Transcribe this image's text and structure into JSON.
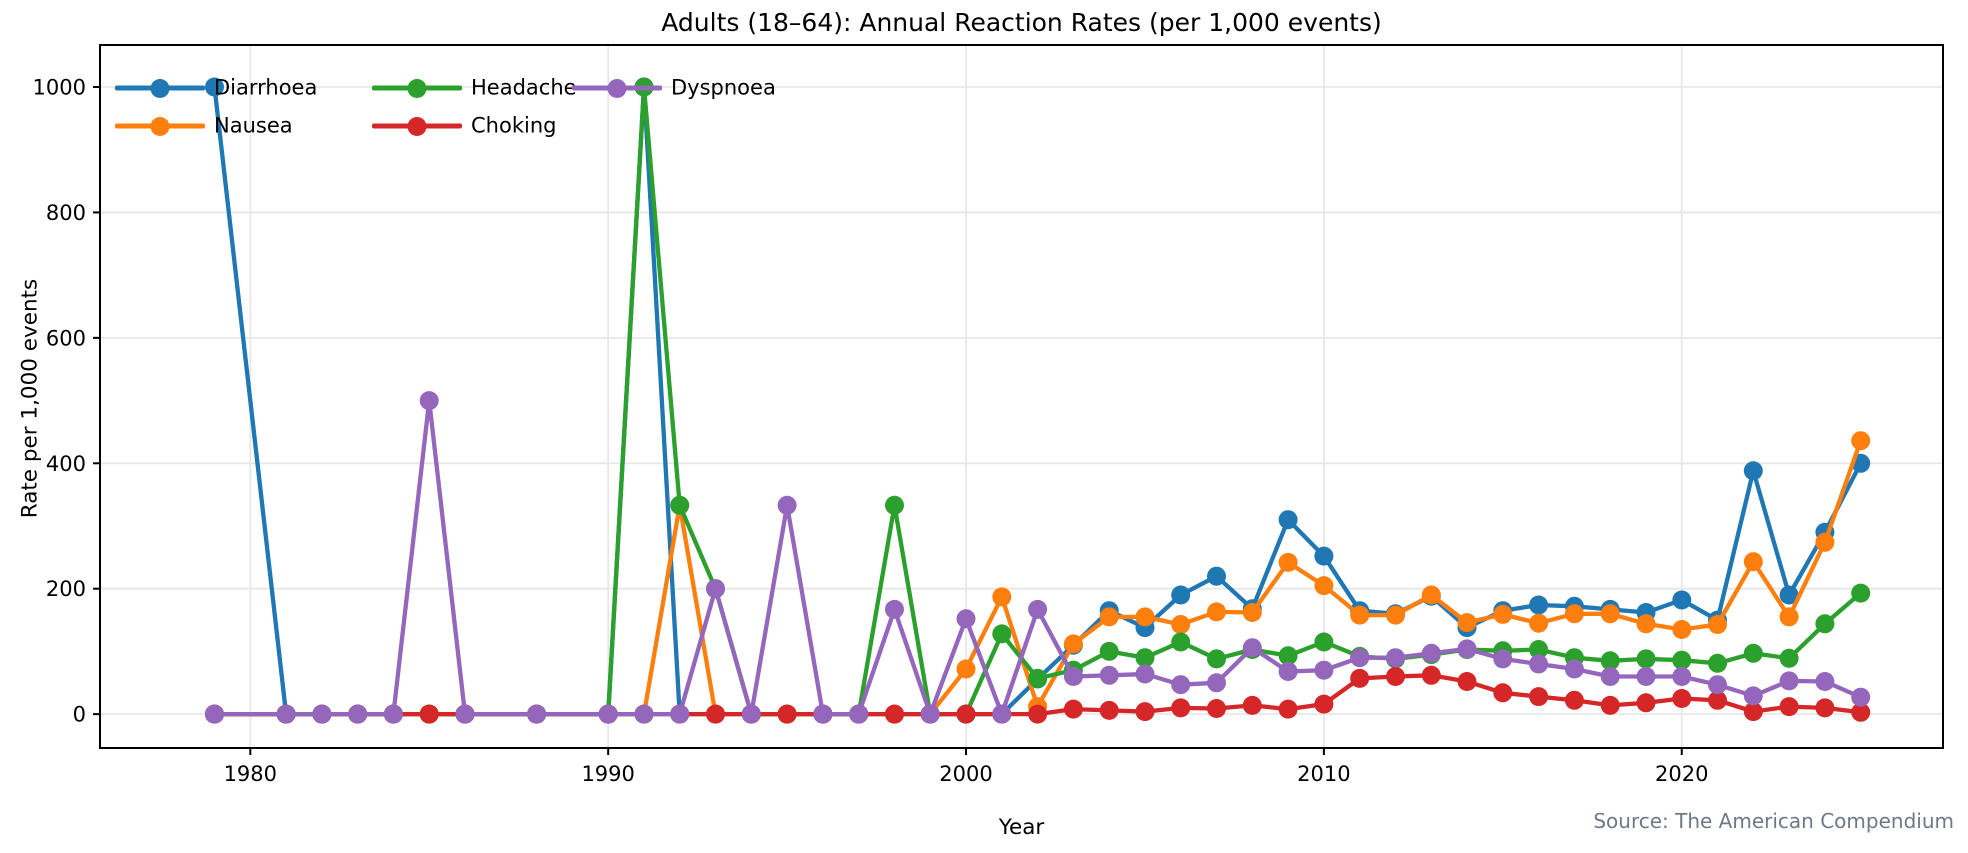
{
  "chart_data": {
    "type": "line",
    "title": "Adults (18–64): Annual Reaction Rates (per 1,000 events)",
    "xlabel": "Year",
    "ylabel": "Rate per 1,000 events",
    "source": "Source: The American Compendium",
    "xlim": [
      1975.8,
      2027.3
    ],
    "ylim": [
      -54,
      1067
    ],
    "x_ticks": [
      1980,
      1990,
      2000,
      2010,
      2020
    ],
    "y_ticks": [
      0,
      200,
      400,
      600,
      800,
      1000
    ],
    "grid": true,
    "legend_position": "upper-left",
    "x": [
      1979,
      1981,
      1982,
      1983,
      1984,
      1985,
      1986,
      1988,
      1990,
      1991,
      1992,
      1993,
      1994,
      1995,
      1996,
      1997,
      1998,
      1999,
      2000,
      2001,
      2002,
      2003,
      2004,
      2005,
      2006,
      2007,
      2008,
      2009,
      2010,
      2011,
      2012,
      2013,
      2014,
      2015,
      2016,
      2017,
      2018,
      2019,
      2020,
      2021,
      2022,
      2023,
      2024,
      2025
    ],
    "series": [
      {
        "name": "Diarrhoea",
        "color": "#1f77b4",
        "values": [
          1000,
          0,
          0,
          0,
          0,
          0,
          0,
          0,
          0,
          1000,
          0,
          0,
          0,
          0,
          0,
          0,
          0,
          0,
          0,
          0,
          56,
          110,
          165,
          138,
          190,
          220,
          168,
          310,
          252,
          165,
          160,
          188,
          138,
          165,
          174,
          172,
          167,
          162,
          182,
          150,
          388,
          190,
          290,
          400
        ]
      },
      {
        "name": "Nausea",
        "color": "#ff7f0e",
        "values": [
          0,
          0,
          0,
          0,
          0,
          0,
          0,
          0,
          0,
          0,
          333,
          0,
          0,
          0,
          0,
          0,
          0,
          0,
          72,
          187,
          12,
          112,
          155,
          155,
          143,
          163,
          162,
          242,
          205,
          158,
          158,
          190,
          146,
          159,
          145,
          160,
          160,
          144,
          135,
          143,
          243,
          155,
          274,
          436
        ]
      },
      {
        "name": "Headache",
        "color": "#2ca02c",
        "values": [
          0,
          0,
          0,
          0,
          0,
          0,
          0,
          0,
          0,
          1000,
          333,
          200,
          0,
          0,
          0,
          0,
          333,
          0,
          0,
          128,
          57,
          70,
          100,
          90,
          115,
          88,
          103,
          93,
          115,
          92,
          88,
          95,
          103,
          101,
          103,
          90,
          85,
          88,
          86,
          81,
          97,
          89,
          144,
          193
        ]
      },
      {
        "name": "Choking",
        "color": "#d62728",
        "values": [
          0,
          0,
          0,
          0,
          0,
          0,
          0,
          0,
          0,
          0,
          0,
          0,
          0,
          0,
          0,
          0,
          0,
          0,
          0,
          0,
          0,
          8,
          6,
          4,
          10,
          9,
          14,
          8,
          16,
          57,
          60,
          62,
          52,
          34,
          28,
          22,
          14,
          18,
          25,
          22,
          4,
          12,
          10,
          3
        ]
      },
      {
        "name": "Dyspnoea",
        "color": "#9467bd",
        "values": [
          0,
          0,
          0,
          0,
          0,
          500,
          0,
          0,
          0,
          0,
          0,
          200,
          0,
          333,
          0,
          0,
          167,
          0,
          152,
          0,
          167,
          60,
          62,
          64,
          47,
          50,
          106,
          68,
          70,
          90,
          90,
          97,
          104,
          88,
          80,
          72,
          60,
          60,
          60,
          47,
          29,
          53,
          52,
          27
        ]
      }
    ]
  }
}
